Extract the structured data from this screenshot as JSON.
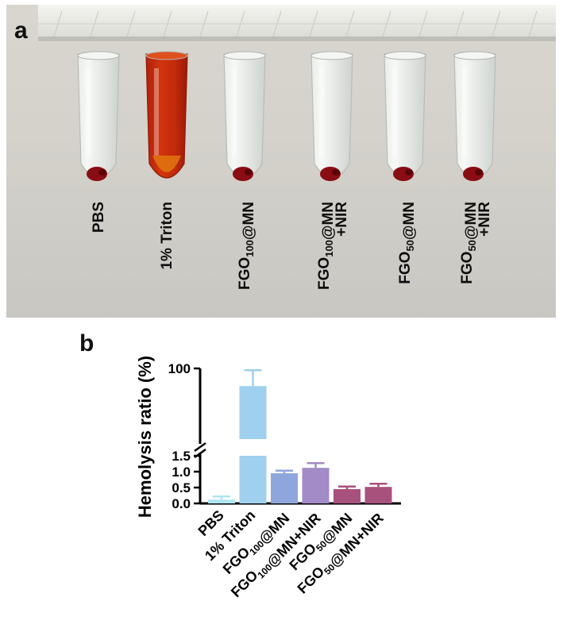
{
  "panel_a": {
    "letter": "a",
    "tubes": [
      {
        "label_lines": [
          [
            "PBS"
          ]
        ],
        "fill": "clear"
      },
      {
        "label_lines": [
          [
            "1% Triton"
          ]
        ],
        "fill": "red"
      },
      {
        "label_lines": [
          [
            "FGO",
            {
              "sub": "100"
            },
            "@MN"
          ]
        ],
        "fill": "clear"
      },
      {
        "label_lines": [
          [
            "FGO",
            {
              "sub": "100"
            },
            "@MN"
          ],
          [
            "+NIR"
          ]
        ],
        "fill": "clear"
      },
      {
        "label_lines": [
          [
            "FGO",
            {
              "sub": "50"
            },
            "@MN"
          ]
        ],
        "fill": "clear"
      },
      {
        "label_lines": [
          [
            "FGO",
            {
              "sub": "50"
            },
            "@MN"
          ],
          [
            "+NIR"
          ]
        ],
        "fill": "clear"
      }
    ]
  },
  "panel_b": {
    "letter": "b"
  },
  "chart_data": {
    "type": "bar",
    "title": "",
    "ylabel": "Hemolysis ratio (%)",
    "xlabel": "",
    "y_axis_break": {
      "lower_range": [
        0,
        1.5
      ],
      "upper_top": 100
    },
    "y_ticks": [
      {
        "value": 0.0,
        "label": "0.0"
      },
      {
        "value": 0.5,
        "label": "0.5"
      },
      {
        "value": 1.0,
        "label": "1.0"
      },
      {
        "value": 1.5,
        "label": "1.5"
      },
      {
        "value": 100,
        "label": "100"
      }
    ],
    "categories": [
      [
        [
          "PBS"
        ]
      ],
      [
        [
          "1% Triton"
        ]
      ],
      [
        [
          "FGO",
          {
            "sub": "100"
          },
          "@MN"
        ]
      ],
      [
        [
          "FGO",
          {
            "sub": "100"
          },
          "@MN+NIR"
        ]
      ],
      [
        [
          "FGO",
          {
            "sub": "50"
          },
          "@MN"
        ]
      ],
      [
        [
          "FGO",
          {
            "sub": "50"
          },
          "@MN+NIR"
        ]
      ]
    ],
    "values": [
      0.12,
      90.0,
      0.95,
      1.12,
      0.45,
      0.52
    ],
    "errors": [
      0.1,
      9.0,
      0.08,
      0.15,
      0.08,
      0.1
    ],
    "colors": [
      "#aee6f2",
      "#9fd0ee",
      "#8ea6dc",
      "#a38bc7",
      "#a8517d",
      "#a8517d"
    ]
  }
}
